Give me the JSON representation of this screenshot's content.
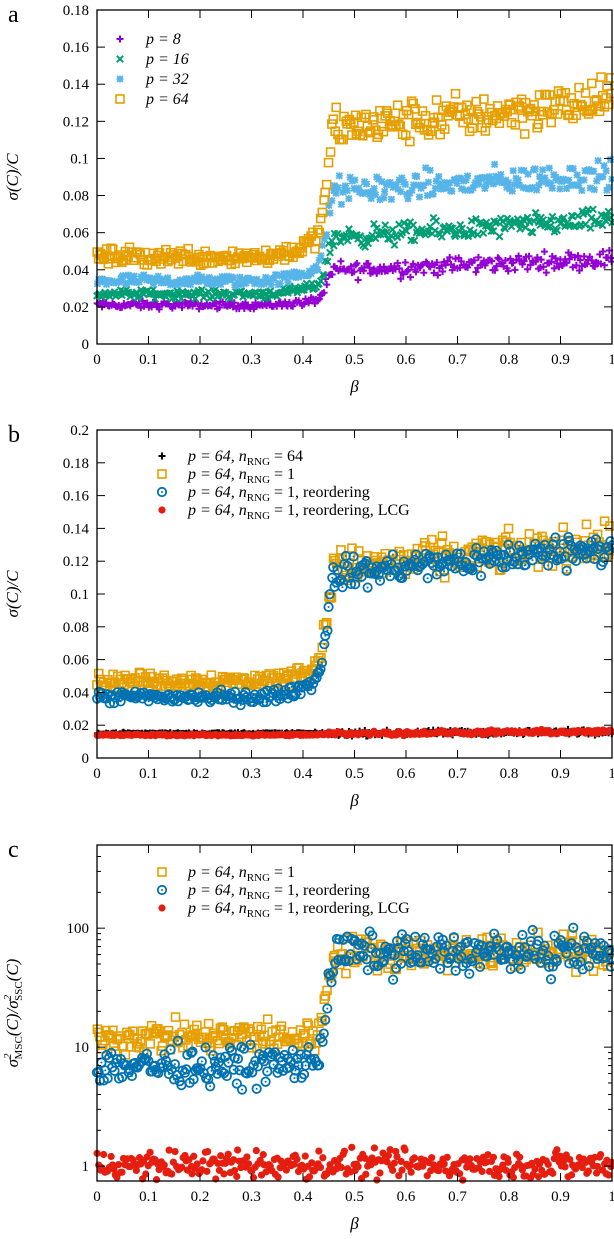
{
  "chart_data": [
    {
      "type": "scatter",
      "panel_label": "a",
      "ylabel": "σ(C)/C",
      "xlabel": "β",
      "xlim": [
        0,
        1
      ],
      "ylim": [
        0,
        0.18
      ],
      "x_ticks": [
        "0",
        "0.1",
        "0.2",
        "0.3",
        "0.4",
        "0.5",
        "0.6",
        "0.7",
        "0.8",
        "0.9",
        "1"
      ],
      "y_ticks": [
        "0",
        "0.02",
        "0.04",
        "0.06",
        "0.08",
        "0.1",
        "0.12",
        "0.14",
        "0.16",
        "0.18"
      ],
      "y_scale": "linear",
      "legend_position": "top-left",
      "grid": false,
      "series": [
        {
          "name": "p = 8",
          "color": "#9400d3",
          "marker": "plus",
          "low": 0.021,
          "high": 0.04,
          "noise": 0.0025,
          "end_rise": 0.006
        },
        {
          "name": "p = 16",
          "color": "#009e73",
          "marker": "cross",
          "low": 0.027,
          "high": 0.058,
          "noise": 0.003,
          "end_rise": 0.009
        },
        {
          "name": "p = 32",
          "color": "#56b4e9",
          "marker": "star",
          "low": 0.034,
          "high": 0.083,
          "noise": 0.004,
          "end_rise": 0.008
        },
        {
          "name": "p = 64",
          "color": "#e69f00",
          "marker": "square",
          "low": 0.047,
          "high": 0.117,
          "noise": 0.006,
          "end_rise": 0.014
        }
      ]
    },
    {
      "type": "scatter",
      "panel_label": "b",
      "ylabel": "σ(C)/C",
      "xlabel": "β",
      "xlim": [
        0,
        1
      ],
      "ylim": [
        0,
        0.2
      ],
      "x_ticks": [
        "0",
        "0.1",
        "0.2",
        "0.3",
        "0.4",
        "0.5",
        "0.6",
        "0.7",
        "0.8",
        "0.9",
        "1"
      ],
      "y_ticks": [
        "0",
        "0.02",
        "0.04",
        "0.06",
        "0.08",
        "0.1",
        "0.12",
        "0.14",
        "0.16",
        "0.18",
        "0.2"
      ],
      "y_scale": "linear",
      "legend_position": "top-center",
      "grid": false,
      "series": [
        {
          "name": "p = 64, nRNG = 64",
          "color": "#000000",
          "marker": "plus",
          "low": 0.015,
          "high": 0.015,
          "noise": 0.0008,
          "end_rise": 0.001
        },
        {
          "name": "p = 64, nRNG = 1",
          "color": "#e69f00",
          "marker": "square",
          "low": 0.047,
          "high": 0.117,
          "noise": 0.006,
          "end_rise": 0.014
        },
        {
          "name": "p = 64, nRNG = 1, reordering",
          "color": "#0072b2",
          "marker": "circle-dot",
          "low": 0.037,
          "high": 0.113,
          "noise": 0.005,
          "end_rise": 0.016
        },
        {
          "name": "p = 64, nRNG = 1, reordering, LCG",
          "color": "#e51e10",
          "marker": "dot",
          "low": 0.014,
          "high": 0.015,
          "noise": 0.0007,
          "end_rise": 0.001
        }
      ]
    },
    {
      "type": "scatter",
      "panel_label": "c",
      "ylabel": "σ²MSC(C)/σ²SSC(C)",
      "xlabel": "β",
      "xlim": [
        0,
        1
      ],
      "ylim": [
        0.75,
        500
      ],
      "x_ticks": [
        "0",
        "0.1",
        "0.2",
        "0.3",
        "0.4",
        "0.5",
        "0.6",
        "0.7",
        "0.8",
        "0.9",
        "1"
      ],
      "y_ticks": [
        "1",
        "10",
        "100"
      ],
      "y_scale": "log",
      "legend_position": "top-center",
      "grid": false,
      "series": [
        {
          "name": "p = 64, nRNG = 1",
          "color": "#e69f00",
          "marker": "square",
          "low": 12,
          "high": 62,
          "noise": 0.1,
          "end_rise": 0
        },
        {
          "name": "p = 64, nRNG = 1, reordering",
          "color": "#0072b2",
          "marker": "circle-dot",
          "low": 7,
          "high": 62,
          "noise": 0.12,
          "end_rise": 0
        },
        {
          "name": "p = 64, nRNG = 1, reordering, LCG",
          "color": "#e51e10",
          "marker": "dot",
          "low": 1.02,
          "high": 1.02,
          "noise": 0.09,
          "end_rise": 0
        }
      ]
    }
  ]
}
